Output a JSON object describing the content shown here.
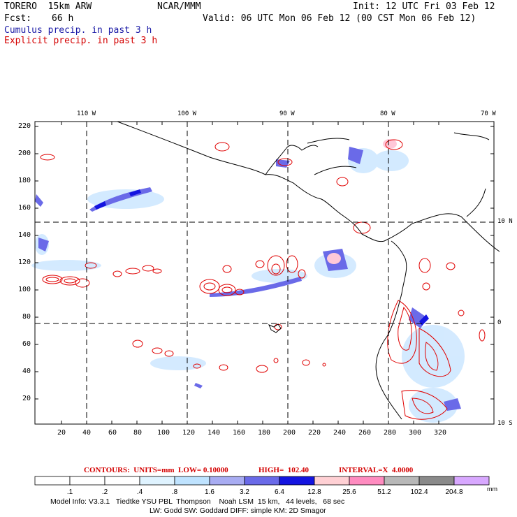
{
  "header": {
    "model": "TORERO  15km ARW",
    "center": "NCAR/MMM",
    "init": "Init: 12 UTC Fri 03 Feb 12",
    "fcst_label": "Fcst:",
    "fcst_value": "66 h",
    "valid": "Valid: 06 UTC Mon 06 Feb 12 (00 CST Mon 06 Feb 12)"
  },
  "legend_text": {
    "cumulus": "Cumulus precip. in past 3 h",
    "explicit": "Explicit precip. in past 3 h"
  },
  "map": {
    "top_lon_labels": [
      "110 W",
      "100 W",
      "90 W",
      "80 W",
      "70 W"
    ],
    "right_lat_labels": [
      "10 N",
      "0",
      "10 S"
    ],
    "y_ticks": [
      "220",
      "200",
      "180",
      "160",
      "140",
      "120",
      "100",
      "80",
      "60",
      "40",
      "20"
    ],
    "x_ticks": [
      "20",
      "40",
      "60",
      "80",
      "100",
      "120",
      "140",
      "160",
      "180",
      "200",
      "220",
      "240",
      "260",
      "280",
      "300",
      "320"
    ]
  },
  "contour_info": {
    "contours": "CONTOURS:  UNITS=mm  LOW= 0.10000",
    "high": "HIGH=  102.40",
    "interval": "INTERVAL=X  4.0000"
  },
  "colorbar": {
    "unit": "mm",
    "labels": [
      ".1",
      ".2",
      ".4",
      ".8",
      "1.6",
      "3.2",
      "6.4",
      "12.8",
      "25.6",
      "51.2",
      "102.4",
      "204.8"
    ],
    "colors": [
      "#ffffff",
      "#ffffff",
      "#ffffff",
      "#dff3ff",
      "#bfe3ff",
      "#a8acf2",
      "#6a6ae8",
      "#1414e0",
      "#ffd0d4",
      "#ff8cc0",
      "#b8b8b8",
      "#8a8a8a",
      "#d8a8ff"
    ]
  },
  "footer": {
    "line1": "Model Info: V3.3.1   Tiedtke YSU PBL  Thompson    Noah LSM  15 km,   44 levels,   68 sec",
    "line2": "LW: Godd SW: Goddard DIFF: simple KM: 2D Smagor"
  }
}
